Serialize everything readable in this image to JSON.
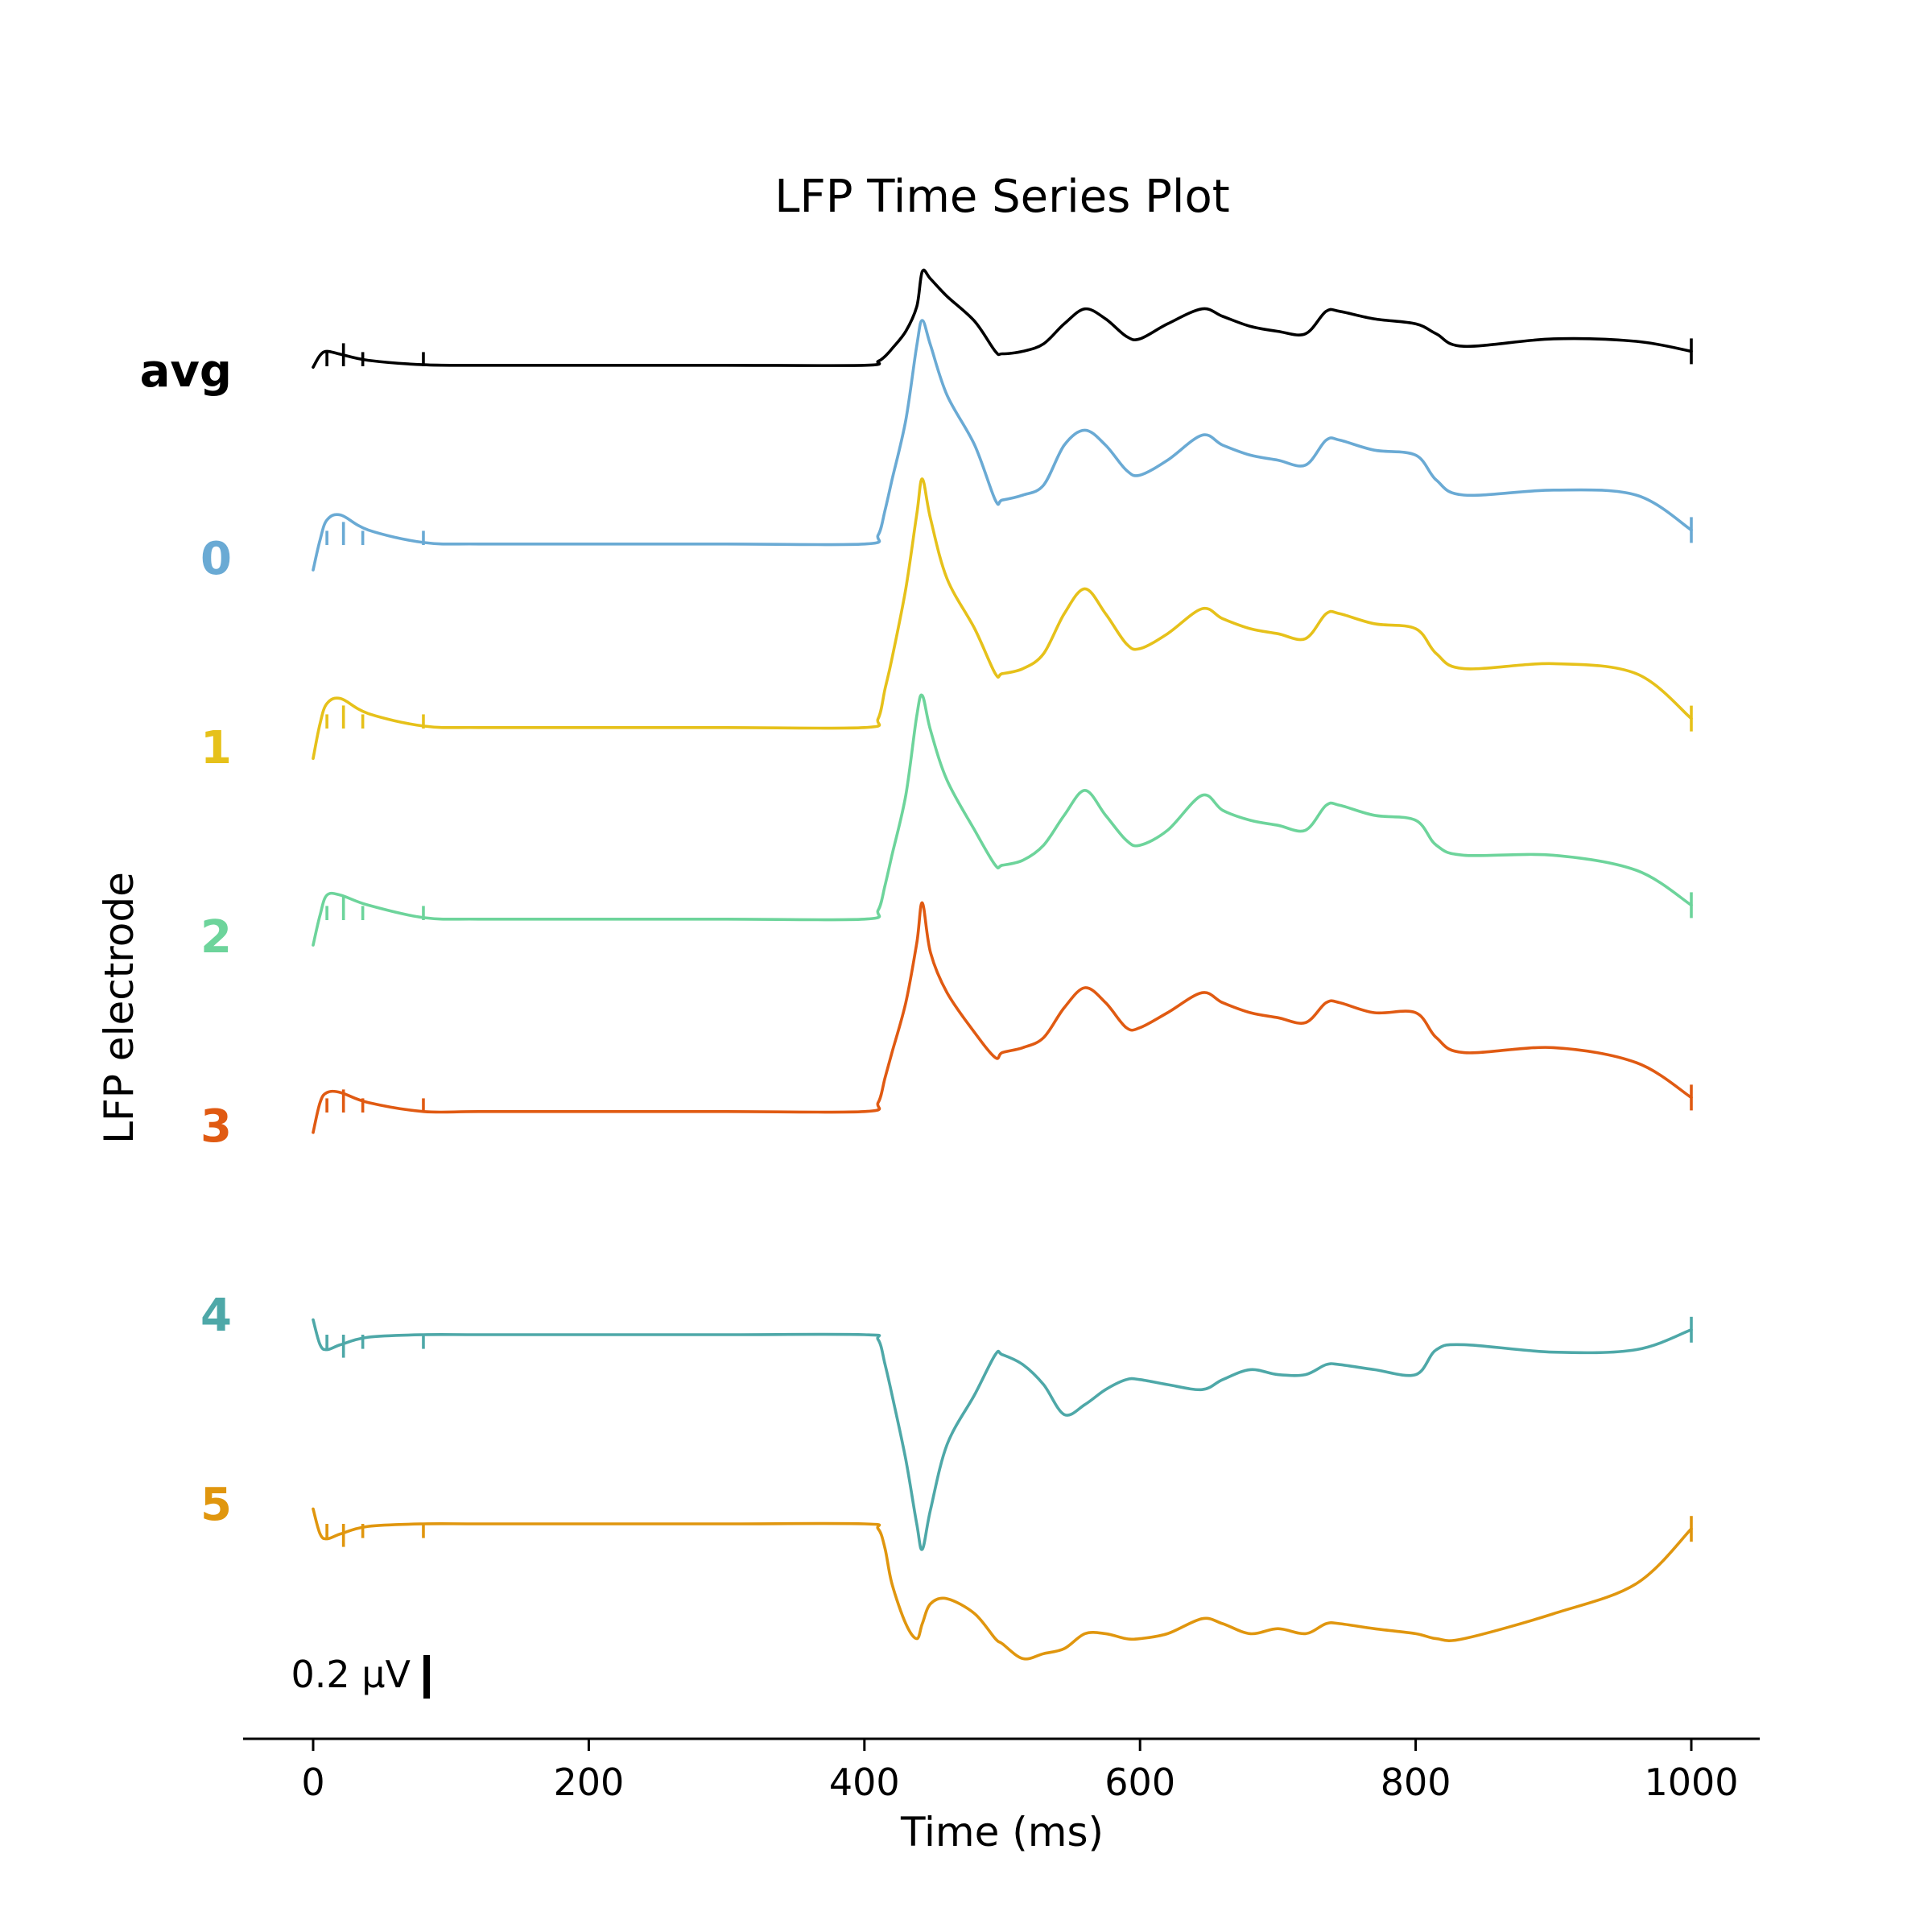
{
  "chart_data": {
    "type": "line",
    "title": "LFP Time Series Plot",
    "xlabel": "Time (ms)",
    "ylabel": "LFP electrode",
    "xlim": [
      -25,
      1050
    ],
    "x_ticks": [
      0,
      200,
      400,
      600,
      800,
      1000
    ],
    "grid": false,
    "scale_bar": {
      "label": "0.2 μV",
      "value_uV": 0.2
    },
    "stimulus_marker_times_ms": [
      10,
      22,
      36,
      80
    ],
    "x": [
      0,
      5,
      10,
      20,
      40,
      80,
      120,
      200,
      300,
      400,
      410,
      415,
      420,
      430,
      438,
      442,
      448,
      460,
      480,
      495,
      500,
      515,
      530,
      545,
      560,
      575,
      590,
      600,
      620,
      645,
      660,
      680,
      700,
      720,
      735,
      745,
      770,
      800,
      815,
      835,
      900,
      960,
      1000
    ],
    "series": [
      {
        "name": "avg",
        "color": "#000000",
        "label_bold": true,
        "values": [
          -0.002,
          0.022,
          0.03,
          0.024,
          0.012,
          0.003,
          0.002,
          0.002,
          0.002,
          0.002,
          0.01,
          0.02,
          0.035,
          0.07,
          0.12,
          0.19,
          0.175,
          0.14,
          0.09,
          0.03,
          0.025,
          0.03,
          0.045,
          0.085,
          0.115,
          0.095,
          0.06,
          0.055,
          0.085,
          0.115,
          0.1,
          0.08,
          0.07,
          0.065,
          0.11,
          0.11,
          0.095,
          0.085,
          0.065,
          0.04,
          0.055,
          0.05,
          0.03
        ]
      },
      {
        "name": "0",
        "color": "#6aaad4",
        "label_bold": true,
        "values": [
          -0.05,
          0.01,
          0.05,
          0.06,
          0.03,
          0.005,
          0.002,
          0.002,
          0.002,
          0.002,
          0.02,
          0.07,
          0.13,
          0.25,
          0.4,
          0.45,
          0.4,
          0.3,
          0.2,
          0.09,
          0.09,
          0.1,
          0.12,
          0.2,
          0.23,
          0.2,
          0.15,
          0.14,
          0.17,
          0.22,
          0.2,
          0.18,
          0.17,
          0.16,
          0.21,
          0.21,
          0.19,
          0.18,
          0.13,
          0.1,
          0.11,
          0.1,
          0.03
        ]
      },
      {
        "name": "1",
        "color": "#e6c11a",
        "label_bold": true,
        "values": [
          -0.06,
          0.01,
          0.05,
          0.06,
          0.03,
          0.005,
          0.002,
          0.002,
          0.002,
          0.002,
          0.02,
          0.08,
          0.14,
          0.28,
          0.43,
          0.5,
          0.42,
          0.3,
          0.2,
          0.11,
          0.11,
          0.12,
          0.15,
          0.23,
          0.28,
          0.23,
          0.17,
          0.16,
          0.19,
          0.24,
          0.22,
          0.2,
          0.19,
          0.18,
          0.23,
          0.23,
          0.21,
          0.2,
          0.15,
          0.12,
          0.13,
          0.11,
          0.02
        ]
      },
      {
        "name": "2",
        "color": "#6dd49b",
        "label_bold": true,
        "values": [
          -0.05,
          0.01,
          0.05,
          0.05,
          0.03,
          0.005,
          0.002,
          0.002,
          0.002,
          0.002,
          0.02,
          0.07,
          0.13,
          0.25,
          0.41,
          0.45,
          0.38,
          0.28,
          0.18,
          0.11,
          0.11,
          0.12,
          0.15,
          0.21,
          0.26,
          0.21,
          0.16,
          0.15,
          0.18,
          0.25,
          0.22,
          0.2,
          0.19,
          0.18,
          0.23,
          0.23,
          0.21,
          0.2,
          0.15,
          0.13,
          0.13,
          0.1,
          0.03
        ]
      },
      {
        "name": "3",
        "color": "#e05a12",
        "label_bold": true,
        "values": [
          -0.04,
          0.02,
          0.04,
          0.04,
          0.02,
          0.002,
          0.002,
          0.002,
          0.002,
          0.002,
          0.02,
          0.07,
          0.12,
          0.22,
          0.34,
          0.42,
          0.32,
          0.24,
          0.16,
          0.11,
          0.12,
          0.13,
          0.15,
          0.21,
          0.25,
          0.22,
          0.17,
          0.17,
          0.2,
          0.24,
          0.22,
          0.2,
          0.19,
          0.18,
          0.22,
          0.22,
          0.2,
          0.2,
          0.15,
          0.12,
          0.13,
          0.1,
          0.03
        ]
      },
      {
        "name": "4",
        "color": "#4ea8a8",
        "label_bold": true,
        "values": [
          0.03,
          -0.02,
          -0.03,
          -0.02,
          -0.005,
          0.0,
          0.0,
          0.0,
          0.0,
          0.0,
          -0.01,
          -0.06,
          -0.12,
          -0.25,
          -0.38,
          -0.43,
          -0.35,
          -0.22,
          -0.12,
          -0.04,
          -0.04,
          -0.06,
          -0.1,
          -0.16,
          -0.14,
          -0.11,
          -0.09,
          -0.09,
          -0.1,
          -0.11,
          -0.09,
          -0.07,
          -0.08,
          -0.08,
          -0.06,
          -0.06,
          -0.07,
          -0.08,
          -0.03,
          -0.02,
          -0.035,
          -0.03,
          0.01
        ]
      },
      {
        "name": "5",
        "color": "#e0960e",
        "label_bold": true,
        "values": [
          0.03,
          -0.02,
          -0.03,
          -0.02,
          -0.005,
          0.0,
          0.0,
          0.0,
          0.0,
          0.0,
          -0.01,
          -0.05,
          -0.12,
          -0.2,
          -0.23,
          -0.2,
          -0.16,
          -0.15,
          -0.18,
          -0.23,
          -0.24,
          -0.27,
          -0.26,
          -0.25,
          -0.22,
          -0.22,
          -0.23,
          -0.23,
          -0.22,
          -0.19,
          -0.2,
          -0.22,
          -0.21,
          -0.22,
          -0.2,
          -0.2,
          -0.21,
          -0.22,
          -0.23,
          -0.23,
          -0.18,
          -0.12,
          -0.01
        ]
      }
    ]
  }
}
